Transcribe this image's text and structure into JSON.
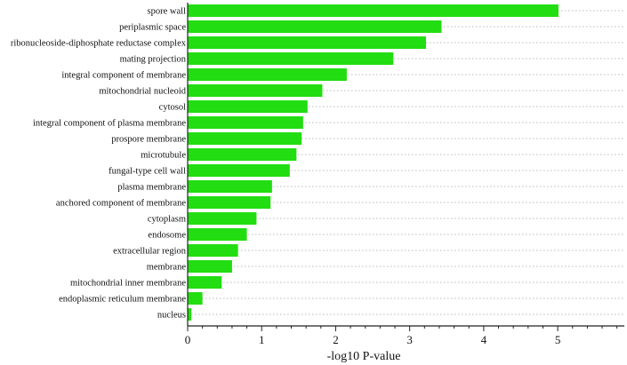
{
  "chart_data": {
    "type": "bar",
    "orientation": "horizontal",
    "categories": [
      "spore wall",
      "periplasmic space",
      "ribonucleoside-diphosphate reductase complex",
      "mating projection",
      "integral component of membrane",
      "mitochondrial nucleoid",
      "cytosol",
      "integral component of plasma membrane",
      "prospore membrane",
      "microtubule",
      "fungal-type cell wall",
      "plasma membrane",
      "anchored component of membrane",
      "cytoplasm",
      "endosome",
      "extracellular region",
      "membrane",
      "mitochondrial inner membrane",
      "endoplasmic reticulum membrane",
      "nucleus"
    ],
    "values": [
      5.01,
      3.43,
      3.22,
      2.78,
      2.15,
      1.82,
      1.62,
      1.56,
      1.54,
      1.47,
      1.38,
      1.14,
      1.12,
      0.93,
      0.8,
      0.68,
      0.6,
      0.46,
      0.2,
      0.05
    ],
    "bar_color": "#22dd11",
    "xlabel": "-log10 P-value",
    "ylabel": "",
    "title": "",
    "xlim": [
      0,
      5.9
    ],
    "xticks": [
      0,
      1,
      2,
      3,
      4,
      5
    ],
    "grid": "horizontal dotted",
    "legend": "none"
  }
}
